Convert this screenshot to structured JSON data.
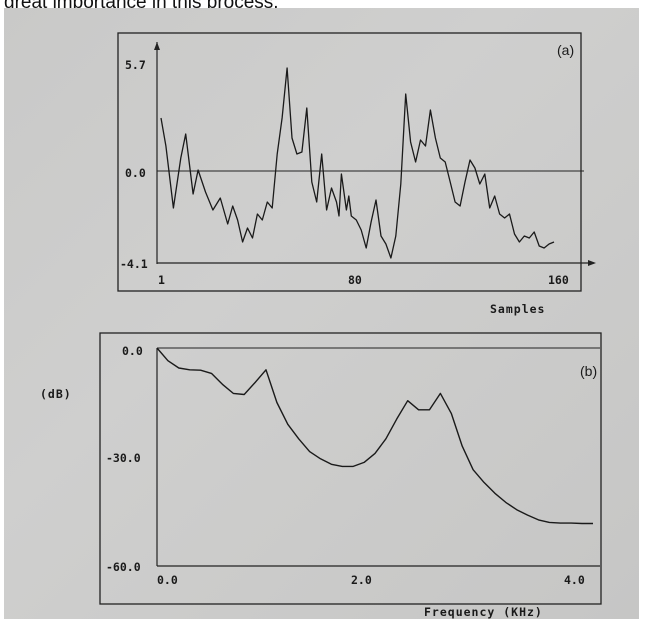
{
  "page": {
    "caption_fragment": "great importance in this process."
  },
  "chart_data": [
    {
      "type": "line",
      "panel_label": "(a)",
      "xlabel": "Samples",
      "ylabel": "",
      "xlim": [
        1,
        160
      ],
      "ylim": [
        -4.1,
        5.7
      ],
      "xticks": [
        "1",
        "80",
        "160"
      ],
      "yticks": [
        "5.7",
        "0.0",
        "-4.1"
      ],
      "series": [
        {
          "x": [
            1,
            3,
            6,
            9,
            11,
            14,
            16,
            19,
            22,
            25,
            28,
            30,
            32,
            34,
            36,
            38,
            40,
            42,
            44,
            46,
            48,
            50,
            52,
            54,
            56,
            58,
            60,
            62,
            64,
            66,
            68,
            70,
            72,
            73,
            74,
            75,
            76,
            77,
            78,
            80,
            82,
            84,
            86,
            88,
            90,
            92,
            94,
            96,
            98,
            100,
            102,
            104,
            106,
            108,
            110,
            112,
            114,
            116,
            118,
            120,
            122,
            124,
            126,
            128,
            130,
            132,
            134,
            136,
            138,
            140,
            142,
            144,
            146,
            148,
            150,
            152,
            154,
            156,
            158,
            160
          ],
          "y": [
            3.0,
            1.6,
            -1.5,
            1.0,
            2.2,
            -0.8,
            0.4,
            -0.7,
            -1.6,
            -1.0,
            -2.3,
            -1.4,
            -2.1,
            -3.2,
            -2.5,
            -3.0,
            -1.8,
            -2.1,
            -1.2,
            -1.5,
            1.2,
            3.0,
            5.5,
            2.0,
            1.2,
            1.3,
            3.5,
            -0.2,
            -1.2,
            1.2,
            -1.6,
            -0.5,
            -1.2,
            -1.9,
            0.2,
            -0.7,
            -1.6,
            -0.9,
            -1.9,
            -2.1,
            -2.6,
            -3.5,
            -2.2,
            -1.1,
            -2.9,
            -3.3,
            -4.0,
            -2.9,
            -0.3,
            4.2,
            1.8,
            0.8,
            1.9,
            1.6,
            3.4,
            2.0,
            1.0,
            0.8,
            -0.2,
            -1.2,
            -1.4,
            -0.2,
            0.9,
            0.5,
            -0.3,
            0.2,
            -1.5,
            -0.9,
            -1.8,
            -2.0,
            -1.8,
            -2.8,
            -3.2,
            -2.9,
            -3.0,
            -2.7,
            -3.4,
            -3.5,
            -3.3,
            -3.2
          ]
        }
      ]
    },
    {
      "type": "line",
      "panel_label": "(b)",
      "xlabel": "Frequency (KHz)",
      "ylabel": "(dB)",
      "xlim": [
        0,
        4.0
      ],
      "ylim": [
        -60,
        0
      ],
      "xticks": [
        "0.0",
        "2.0",
        "4.0"
      ],
      "yticks": [
        "0.0",
        "-30.0",
        "-60.0"
      ],
      "series": [
        {
          "x": [
            0.0,
            0.1,
            0.2,
            0.3,
            0.4,
            0.5,
            0.6,
            0.7,
            0.8,
            0.9,
            1.0,
            1.1,
            1.2,
            1.3,
            1.4,
            1.5,
            1.6,
            1.7,
            1.8,
            1.9,
            2.0,
            2.1,
            2.2,
            2.3,
            2.4,
            2.5,
            2.6,
            2.7,
            2.8,
            2.9,
            3.0,
            3.1,
            3.2,
            3.3,
            3.4,
            3.5,
            3.6,
            3.7,
            3.8,
            3.9,
            4.0
          ],
          "y": [
            0.0,
            -3.5,
            -5.5,
            -6.0,
            -6.1,
            -7.0,
            -10.0,
            -12.5,
            -12.8,
            -9.5,
            -6.0,
            -15.0,
            -21.0,
            -25.0,
            -28.5,
            -30.5,
            -32.0,
            -32.6,
            -32.6,
            -31.5,
            -29.0,
            -25.0,
            -19.5,
            -14.5,
            -17.0,
            -17.0,
            -12.5,
            -18.0,
            -27.0,
            -33.5,
            -37.0,
            -40.0,
            -42.5,
            -44.5,
            -46.0,
            -47.3,
            -48.0,
            -48.2,
            -48.2,
            -48.3,
            -48.3
          ]
        }
      ]
    }
  ]
}
